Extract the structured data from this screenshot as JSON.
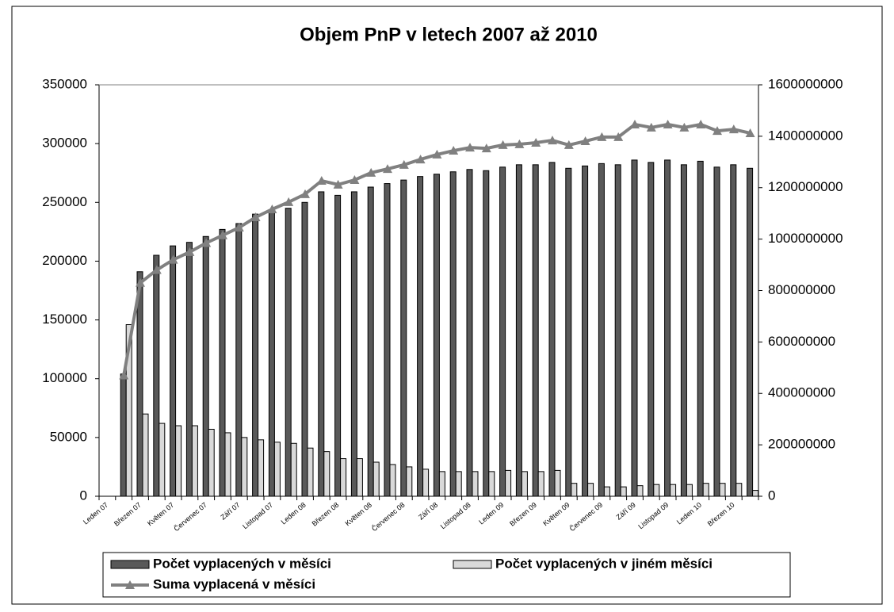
{
  "chart_data": {
    "type": "bar",
    "title": "Objem PnP v letech 2007 až 2010",
    "categories": [
      "Leden 07",
      null,
      "Březen 07",
      null,
      "Květen 07",
      null,
      "Červenec 07",
      null,
      "Září 07",
      null,
      "Listopad 07",
      null,
      "Leden 08",
      null,
      "Březen 08",
      null,
      "Květen 08",
      null,
      "Červenec 08",
      null,
      "Září 08",
      null,
      "Listopad 08",
      null,
      "Leden 09",
      null,
      "Březen 09",
      null,
      "Květen 09",
      null,
      "Červenec 09",
      null,
      "Září 09",
      null,
      "Listopad 09",
      null,
      "Leden 10",
      null,
      "Březen 10",
      null
    ],
    "series": [
      {
        "name": "Počet vyplacených v měsíci",
        "color": "#595959",
        "values": [
          null,
          104000,
          191000,
          205000,
          213000,
          216000,
          221000,
          227000,
          232000,
          240000,
          243000,
          245000,
          250000,
          259000,
          256000,
          259000,
          263000,
          266000,
          269000,
          272000,
          274000,
          276000,
          278000,
          277000,
          280000,
          282000,
          282000,
          284000,
          279000,
          281000,
          283000,
          282000,
          286000,
          284000,
          286000,
          282000,
          285000,
          280000,
          282000,
          279000
        ]
      },
      {
        "name": "Počet vyplacených v jiném měsíci",
        "color": "#d9d9d9",
        "values": [
          null,
          146000,
          70000,
          62000,
          60000,
          60000,
          57000,
          54000,
          50000,
          48000,
          46000,
          45000,
          41000,
          38000,
          32000,
          32000,
          29000,
          27000,
          25000,
          23000,
          21000,
          21000,
          21000,
          21000,
          22000,
          21000,
          21000,
          22000,
          11000,
          11000,
          8000,
          8000,
          9000,
          10000,
          10000,
          10000,
          11000,
          11000,
          11000,
          5000
        ]
      },
      {
        "name": "Suma vyplacená v měsíci",
        "color": "#808080",
        "type": "line",
        "axis": "y2",
        "values": [
          null,
          470000000,
          830000000,
          880000000,
          920000000,
          950000000,
          985000000,
          1015000000,
          1045000000,
          1085000000,
          1116000000,
          1144000000,
          1175000000,
          1227000000,
          1212000000,
          1230000000,
          1258000000,
          1273000000,
          1289000000,
          1310000000,
          1329000000,
          1344000000,
          1356000000,
          1353000000,
          1366000000,
          1369000000,
          1375000000,
          1384000000,
          1366000000,
          1381000000,
          1397000000,
          1397000000,
          1446000000,
          1434000000,
          1446000000,
          1434000000,
          1446000000,
          1421000000,
          1427000000,
          1412000000
        ]
      }
    ],
    "ylim": [
      0,
      350000
    ],
    "yticks": [
      0,
      50000,
      100000,
      150000,
      200000,
      250000,
      300000,
      350000
    ],
    "y2lim": [
      0,
      1600000000
    ],
    "y2ticks": [
      0,
      200000000,
      400000000,
      600000000,
      800000000,
      1000000000,
      1200000000,
      1400000000,
      1600000000
    ],
    "grid": false,
    "legend": "bottom"
  }
}
